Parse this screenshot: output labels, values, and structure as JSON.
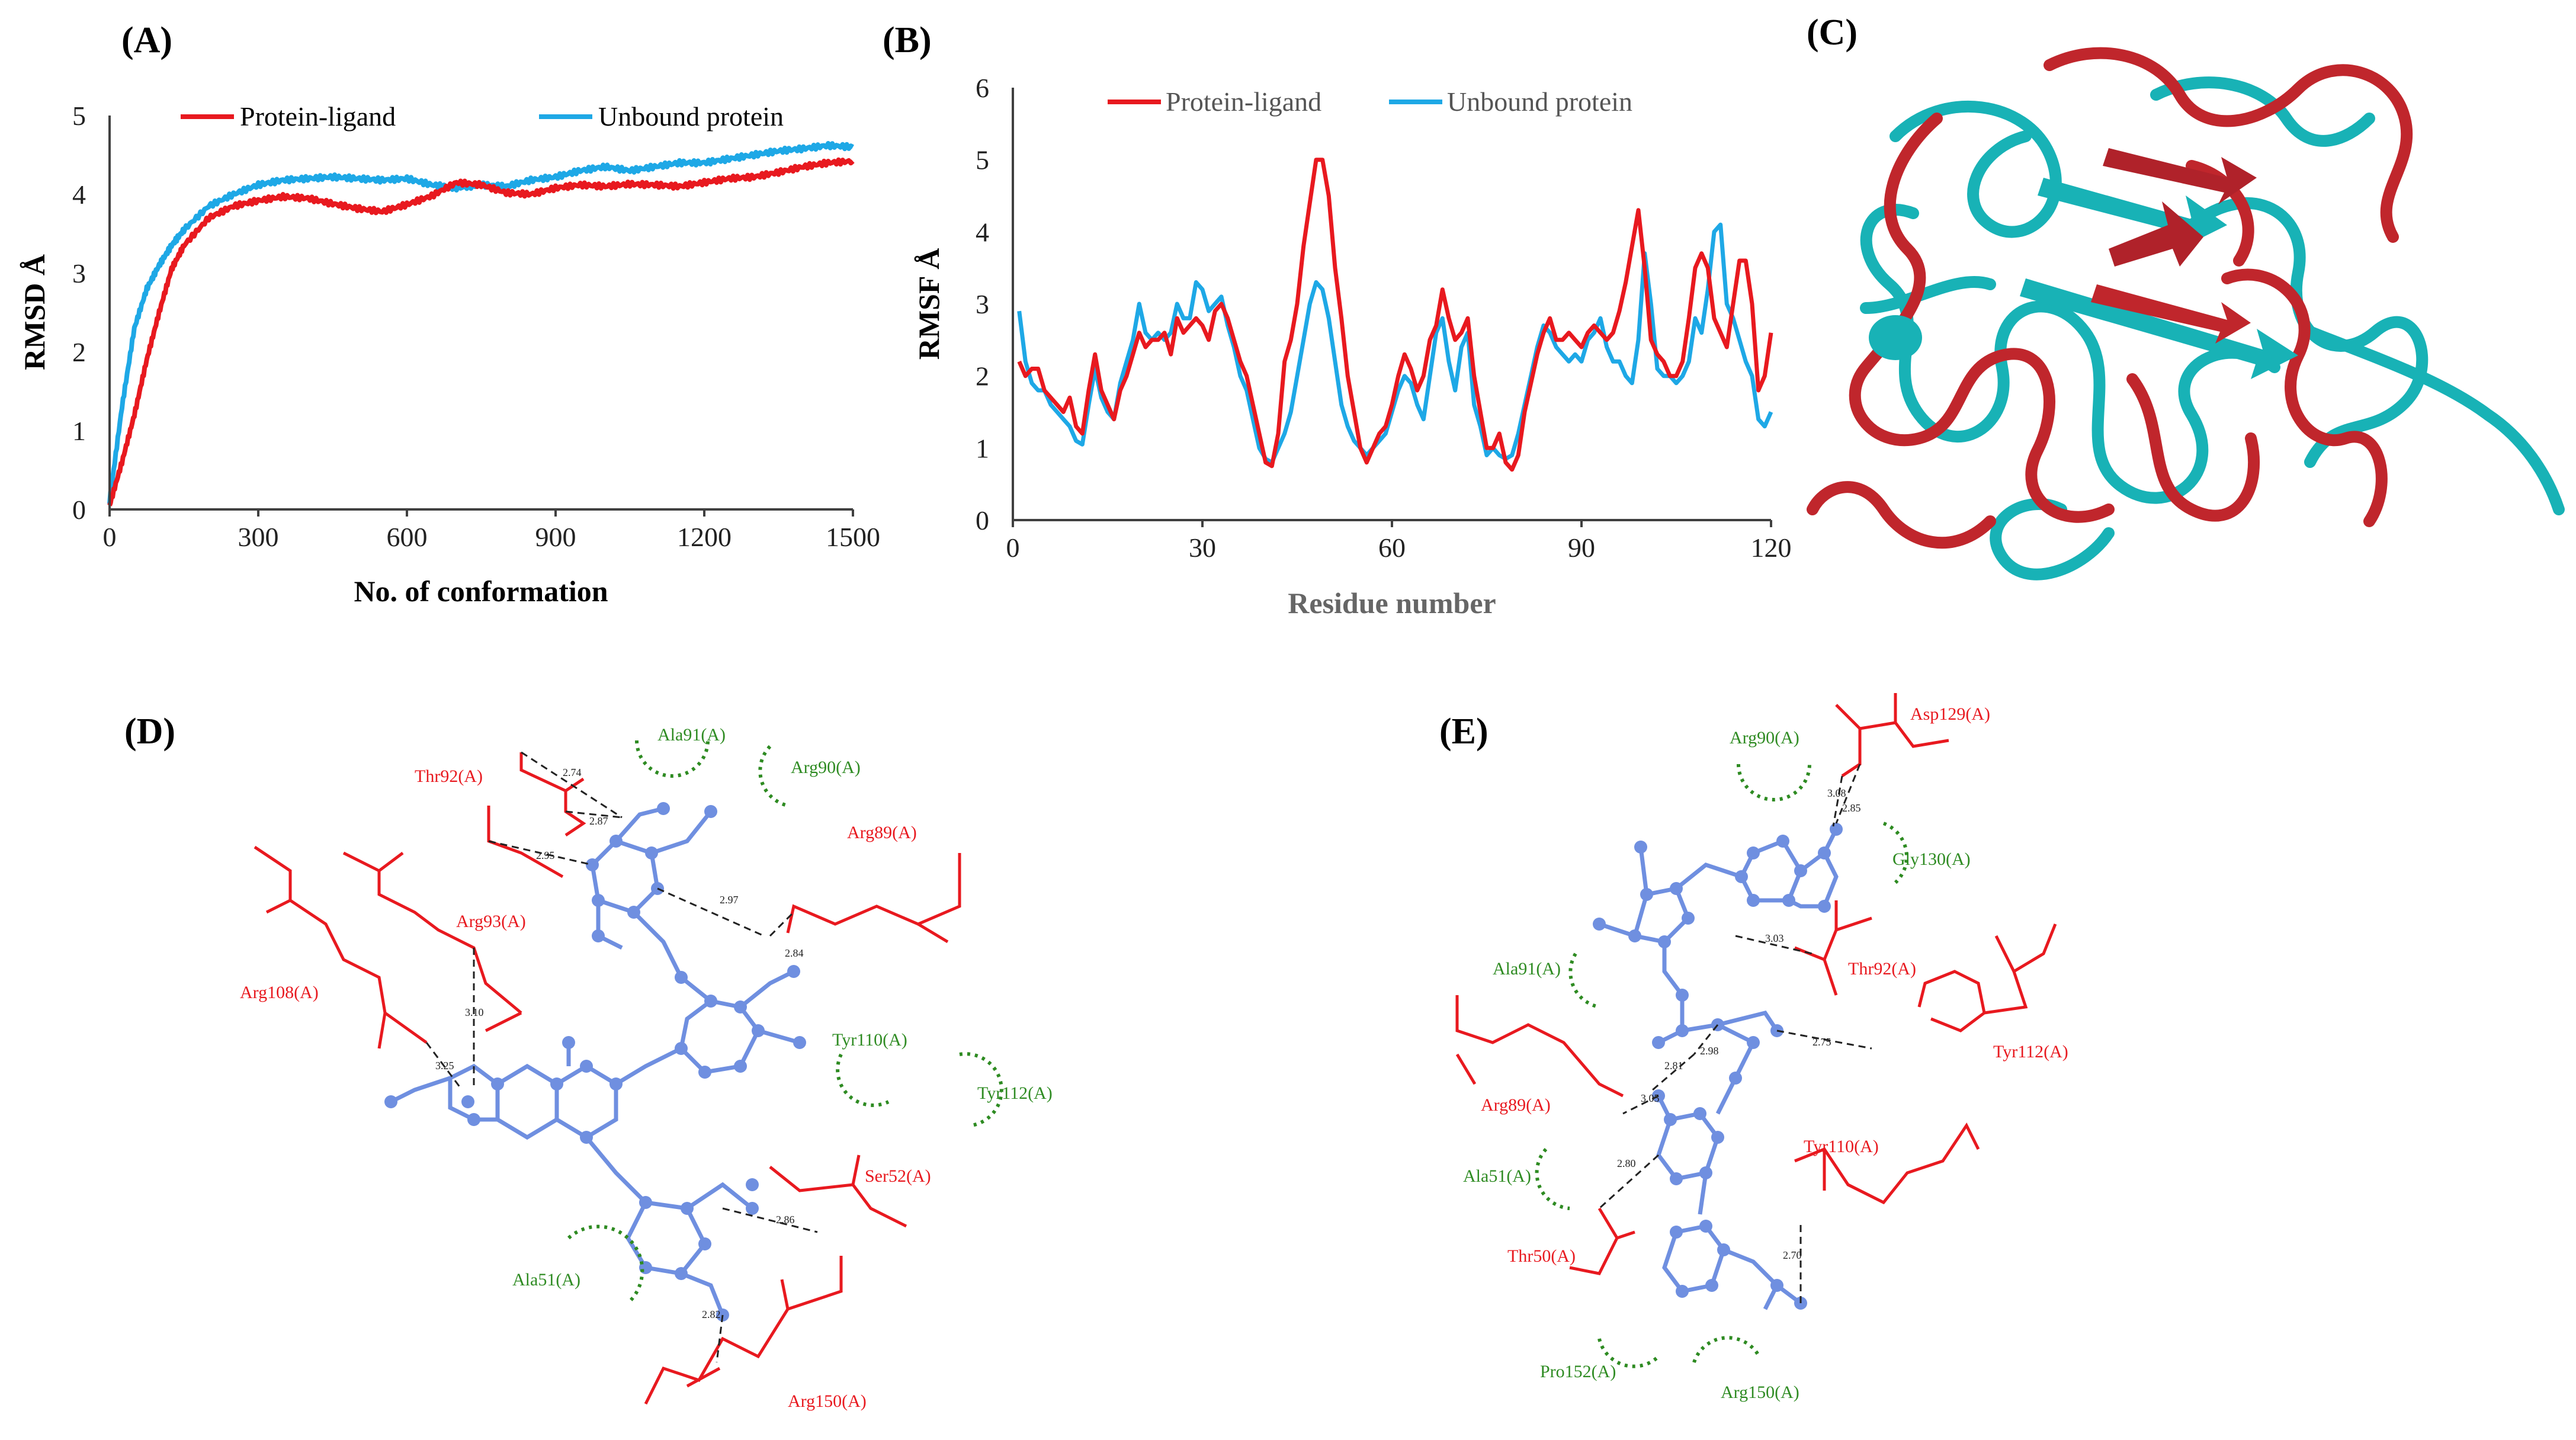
{
  "chart_data": [
    {
      "panel": "(A)",
      "type": "line",
      "xlabel": "No. of conformation",
      "ylabel": "RMSD Å",
      "xlim": [
        0,
        1500
      ],
      "ylim": [
        0,
        5
      ],
      "xticks": [
        "0",
        "300",
        "600",
        "900",
        "1200",
        "1500"
      ],
      "yticks": [
        "0",
        "1",
        "2",
        "3",
        "4",
        "5"
      ],
      "legend_position": "top",
      "series": [
        {
          "name": "Protein-ligand",
          "color": "#e8191f",
          "x": [
            0,
            25,
            50,
            75,
            100,
            125,
            150,
            200,
            250,
            300,
            350,
            400,
            450,
            500,
            550,
            600,
            650,
            700,
            750,
            800,
            850,
            900,
            950,
            1000,
            1050,
            1100,
            1150,
            1200,
            1250,
            1300,
            1350,
            1400,
            1450,
            1500
          ],
          "values": [
            0.05,
            0.6,
            1.2,
            1.9,
            2.5,
            3.05,
            3.35,
            3.7,
            3.85,
            3.92,
            3.97,
            3.95,
            3.88,
            3.82,
            3.78,
            3.87,
            3.98,
            4.15,
            4.12,
            4.02,
            4.0,
            4.08,
            4.12,
            4.1,
            4.13,
            4.12,
            4.1,
            4.15,
            4.2,
            4.22,
            4.28,
            4.35,
            4.4,
            4.42
          ]
        },
        {
          "name": "Unbound protein",
          "color": "#1ea8e6",
          "x": [
            0,
            25,
            50,
            75,
            100,
            125,
            150,
            200,
            250,
            300,
            350,
            400,
            450,
            500,
            550,
            600,
            650,
            700,
            750,
            800,
            850,
            900,
            950,
            1000,
            1050,
            1100,
            1150,
            1200,
            1250,
            1300,
            1350,
            1400,
            1450,
            1500
          ],
          "values": [
            0.1,
            1.3,
            2.3,
            2.8,
            3.1,
            3.35,
            3.55,
            3.85,
            4.0,
            4.12,
            4.18,
            4.2,
            4.22,
            4.2,
            4.18,
            4.2,
            4.12,
            4.08,
            4.12,
            4.1,
            4.18,
            4.22,
            4.3,
            4.35,
            4.3,
            4.35,
            4.4,
            4.4,
            4.45,
            4.5,
            4.55,
            4.58,
            4.62,
            4.6
          ]
        }
      ]
    },
    {
      "panel": "(B)",
      "type": "line",
      "xlabel": "Residue number",
      "ylabel": "RMSF Å",
      "xlim": [
        0,
        120
      ],
      "ylim": [
        0,
        6
      ],
      "xticks": [
        "0",
        "30",
        "60",
        "90",
        "120"
      ],
      "yticks": [
        "0",
        "1",
        "2",
        "3",
        "4",
        "5",
        "6"
      ],
      "legend_position": "top",
      "series": [
        {
          "name": "Protein-ligand",
          "color": "#e8191f",
          "x": [
            1,
            2,
            3,
            4,
            5,
            6,
            7,
            8,
            9,
            10,
            11,
            12,
            13,
            14,
            15,
            16,
            17,
            18,
            19,
            20,
            21,
            22,
            23,
            24,
            25,
            26,
            27,
            28,
            29,
            30,
            31,
            32,
            33,
            34,
            35,
            36,
            37,
            38,
            39,
            40,
            41,
            42,
            43,
            44,
            45,
            46,
            47,
            48,
            49,
            50,
            51,
            52,
            53,
            54,
            55,
            56,
            57,
            58,
            59,
            60,
            61,
            62,
            63,
            64,
            65,
            66,
            67,
            68,
            69,
            70,
            71,
            72,
            73,
            74,
            75,
            76,
            77,
            78,
            79,
            80,
            81,
            82,
            83,
            84,
            85,
            86,
            87,
            88,
            89,
            90,
            91,
            92,
            93,
            94,
            95,
            96,
            97,
            98,
            99,
            100,
            101,
            102,
            103,
            104,
            105,
            106,
            107,
            108,
            109,
            110,
            111,
            112,
            113,
            114,
            115,
            116,
            117,
            118,
            119,
            120
          ],
          "values": [
            2.2,
            2.0,
            2.1,
            2.1,
            1.8,
            1.7,
            1.6,
            1.5,
            1.7,
            1.3,
            1.2,
            1.8,
            2.3,
            1.8,
            1.6,
            1.4,
            1.8,
            2.0,
            2.3,
            2.6,
            2.4,
            2.5,
            2.5,
            2.6,
            2.3,
            2.8,
            2.6,
            2.7,
            2.8,
            2.7,
            2.5,
            2.9,
            3.0,
            2.8,
            2.5,
            2.2,
            2.0,
            1.6,
            1.2,
            0.8,
            0.75,
            1.2,
            2.2,
            2.5,
            3.0,
            3.8,
            4.4,
            5.0,
            5.0,
            4.5,
            3.5,
            2.8,
            2.0,
            1.5,
            1.0,
            0.8,
            1.0,
            1.2,
            1.3,
            1.6,
            2.0,
            2.3,
            2.1,
            1.8,
            2.0,
            2.5,
            2.7,
            3.2,
            2.8,
            2.5,
            2.6,
            2.8,
            2.0,
            1.5,
            1.0,
            1.0,
            1.2,
            0.8,
            0.7,
            0.9,
            1.5,
            1.9,
            2.3,
            2.6,
            2.8,
            2.5,
            2.5,
            2.6,
            2.5,
            2.4,
            2.6,
            2.7,
            2.6,
            2.5,
            2.6,
            2.9,
            3.3,
            3.8,
            4.3,
            3.5,
            2.5,
            2.3,
            2.2,
            2.0,
            2.0,
            2.2,
            2.8,
            3.5,
            3.7,
            3.5,
            2.8,
            2.6,
            2.4,
            3.0,
            3.6,
            3.6,
            3.0,
            1.8,
            2.0,
            2.6
          ]
        },
        {
          "name": "Unbound protein",
          "color": "#1ea8e6",
          "x": [
            1,
            2,
            3,
            4,
            5,
            6,
            7,
            8,
            9,
            10,
            11,
            12,
            13,
            14,
            15,
            16,
            17,
            18,
            19,
            20,
            21,
            22,
            23,
            24,
            25,
            26,
            27,
            28,
            29,
            30,
            31,
            32,
            33,
            34,
            35,
            36,
            37,
            38,
            39,
            40,
            41,
            42,
            43,
            44,
            45,
            46,
            47,
            48,
            49,
            50,
            51,
            52,
            53,
            54,
            55,
            56,
            57,
            58,
            59,
            60,
            61,
            62,
            63,
            64,
            65,
            66,
            67,
            68,
            69,
            70,
            71,
            72,
            73,
            74,
            75,
            76,
            77,
            78,
            79,
            80,
            81,
            82,
            83,
            84,
            85,
            86,
            87,
            88,
            89,
            90,
            91,
            92,
            93,
            94,
            95,
            96,
            97,
            98,
            99,
            100,
            101,
            102,
            103,
            104,
            105,
            106,
            107,
            108,
            109,
            110,
            111,
            112,
            113,
            114,
            115,
            116,
            117,
            118,
            119,
            120
          ],
          "values": [
            2.9,
            2.2,
            1.9,
            1.8,
            1.8,
            1.6,
            1.5,
            1.4,
            1.3,
            1.1,
            1.05,
            1.6,
            2.1,
            1.7,
            1.5,
            1.4,
            1.9,
            2.2,
            2.5,
            3.0,
            2.6,
            2.5,
            2.6,
            2.5,
            2.6,
            3.0,
            2.8,
            2.8,
            3.3,
            3.2,
            2.9,
            3.0,
            3.1,
            2.7,
            2.4,
            2.0,
            1.8,
            1.4,
            1.0,
            0.85,
            0.8,
            1.0,
            1.2,
            1.5,
            2.0,
            2.5,
            3.0,
            3.3,
            3.2,
            2.8,
            2.2,
            1.6,
            1.3,
            1.1,
            1.0,
            0.9,
            1.0,
            1.1,
            1.2,
            1.5,
            1.8,
            2.0,
            1.9,
            1.6,
            1.4,
            2.0,
            2.6,
            2.8,
            2.2,
            1.8,
            2.4,
            2.6,
            1.6,
            1.3,
            0.9,
            1.0,
            0.9,
            0.85,
            0.9,
            1.2,
            1.6,
            2.0,
            2.4,
            2.7,
            2.6,
            2.4,
            2.3,
            2.2,
            2.3,
            2.2,
            2.5,
            2.6,
            2.8,
            2.4,
            2.2,
            2.2,
            2.0,
            1.9,
            2.5,
            3.7,
            3.0,
            2.1,
            2.0,
            2.0,
            1.9,
            2.0,
            2.2,
            2.8,
            2.6,
            3.2,
            4.0,
            4.1,
            3.0,
            2.8,
            2.5,
            2.2,
            2.0,
            1.4,
            1.3,
            1.5
          ]
        }
      ]
    }
  ],
  "panel_c": {
    "label": "(C)",
    "structure_colors": {
      "protein_ligand": "#c0262c",
      "unbound": "#18b2b6"
    }
  },
  "panel_d": {
    "label": "(D)",
    "hbond_residues": [
      "Thr92(A)",
      "Arg89(A)",
      "Arg93(A)",
      "Arg108(A)",
      "Ser52(A)",
      "Arg150(A)"
    ],
    "hydrophobic_residues": [
      "Ala91(A)",
      "Arg90(A)",
      "Tyr110(A)",
      "Tyr112(A)",
      "Ala51(A)"
    ],
    "distances": [
      "2.74",
      "2.87",
      "2.95",
      "2.97",
      "2.84",
      "3.10",
      "3.25",
      "2.86",
      "2.82"
    ]
  },
  "panel_e": {
    "label": "(E)",
    "hbond_residues": [
      "Asp129(A)",
      "Thr92(A)",
      "Tyr112(A)",
      "Arg89(A)",
      "Tyr110(A)",
      "Thr50(A)"
    ],
    "hydrophobic_residues": [
      "Arg90(A)",
      "Gly130(A)",
      "Ala91(A)",
      "Ala51(A)",
      "Pro152(A)",
      "Arg150(A)"
    ],
    "distances": [
      "3.08",
      "2.85",
      "3.03",
      "2.75",
      "2.81",
      "2.98",
      "3.05",
      "2.80",
      "2.70"
    ]
  },
  "colors": {
    "residue_red": "#e8191f",
    "hydrophobic_green": "#2e8b22",
    "ligand_blue": "#6f8fe0",
    "axis_gray": "#404040"
  }
}
